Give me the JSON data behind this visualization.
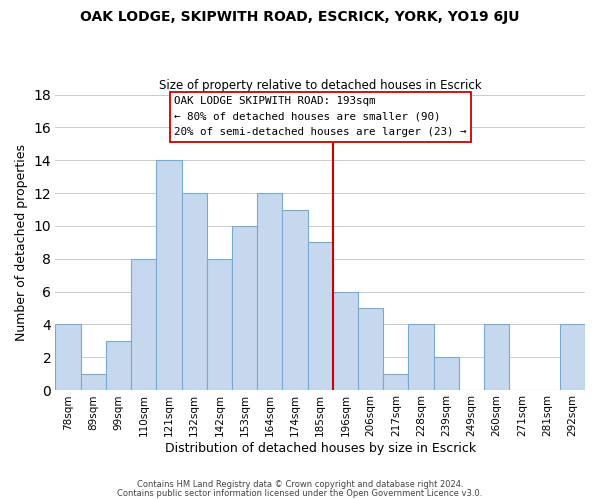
{
  "title": "OAK LODGE, SKIPWITH ROAD, ESCRICK, YORK, YO19 6JU",
  "subtitle": "Size of property relative to detached houses in Escrick",
  "xlabel": "Distribution of detached houses by size in Escrick",
  "ylabel": "Number of detached properties",
  "bin_labels": [
    "78sqm",
    "89sqm",
    "99sqm",
    "110sqm",
    "121sqm",
    "132sqm",
    "142sqm",
    "153sqm",
    "164sqm",
    "174sqm",
    "185sqm",
    "196sqm",
    "206sqm",
    "217sqm",
    "228sqm",
    "239sqm",
    "249sqm",
    "260sqm",
    "271sqm",
    "281sqm",
    "292sqm"
  ],
  "bar_heights": [
    4,
    1,
    3,
    8,
    14,
    12,
    8,
    10,
    12,
    11,
    9,
    6,
    5,
    1,
    4,
    2,
    0,
    4,
    0,
    0,
    4
  ],
  "bar_color": "#c5d8ed",
  "bar_edge_color": "#7aaacf",
  "grid_color": "#cccccc",
  "vline_x": 11.0,
  "vline_color": "#cc0000",
  "annotation_text_line1": "OAK LODGE SKIPWITH ROAD: 193sqm",
  "annotation_text_line2": "← 80% of detached houses are smaller (90)",
  "annotation_text_line3": "20% of semi-detached houses are larger (23) →",
  "box_edge_color": "#cc0000",
  "ylim": [
    0,
    18
  ],
  "yticks": [
    0,
    2,
    4,
    6,
    8,
    10,
    12,
    14,
    16,
    18
  ],
  "footer_line1": "Contains HM Land Registry data © Crown copyright and database right 2024.",
  "footer_line2": "Contains public sector information licensed under the Open Government Licence v3.0."
}
